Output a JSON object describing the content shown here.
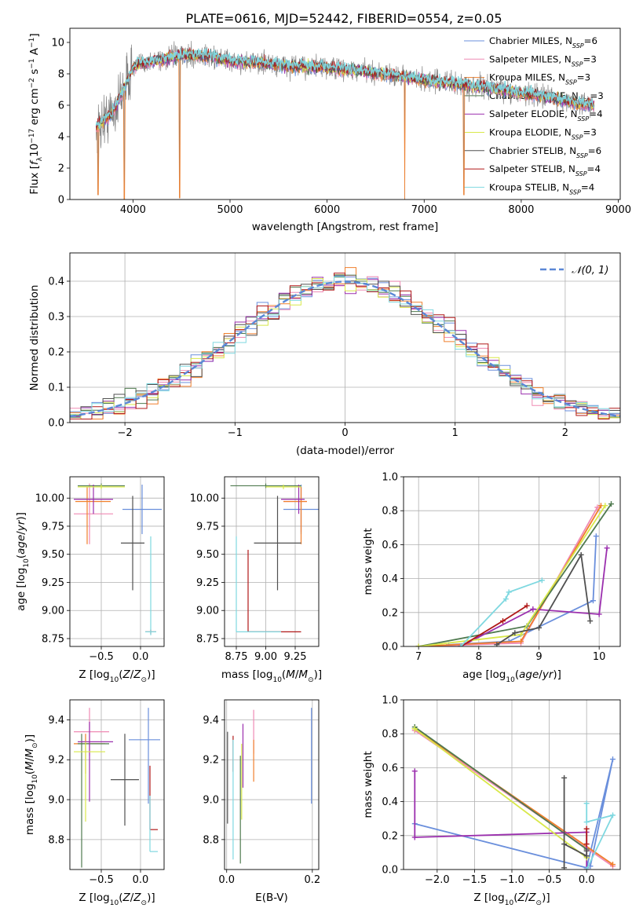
{
  "figure": {
    "title": "PLATE=0616, MJD=52442, FIBERID=0554, z=0.05"
  },
  "chart_data": [
    {
      "id": "spectrum",
      "type": "line",
      "xlabel": "wavelength [Angstrom, rest frame]",
      "ylabel": "Flux [fλ10⁻¹⁷ erg cm⁻² s⁻¹ A⁻¹]",
      "xlim": [
        3350,
        9020
      ],
      "ylim": [
        0,
        10.9
      ],
      "xticks": [
        4000,
        5000,
        6000,
        7000,
        8000,
        9000
      ],
      "yticks": [
        0,
        2,
        4,
        6,
        8,
        10
      ],
      "legend_position": "right",
      "data_range": [
        3620,
        8750
      ],
      "continuum": [
        [
          3620,
          4.6
        ],
        [
          3800,
          5.6
        ],
        [
          3900,
          7.0
        ],
        [
          4000,
          8.4
        ],
        [
          4100,
          8.7
        ],
        [
          4300,
          8.9
        ],
        [
          4500,
          9.2
        ],
        [
          4800,
          9.1
        ],
        [
          5000,
          8.8
        ],
        [
          5300,
          8.7
        ],
        [
          5600,
          8.5
        ],
        [
          6000,
          8.4
        ],
        [
          6300,
          8.2
        ],
        [
          6600,
          8.0
        ],
        [
          7000,
          7.6
        ],
        [
          7400,
          7.3
        ],
        [
          7800,
          7.0
        ],
        [
          8200,
          6.6
        ],
        [
          8500,
          6.2
        ],
        [
          8750,
          6.0
        ]
      ],
      "absorption_dips": [
        [
          3910,
          0.0
        ],
        [
          4480,
          0.1
        ],
        [
          6800,
          0.0
        ],
        [
          7410,
          0.3
        ],
        [
          3640,
          0.3
        ]
      ],
      "series": [
        {
          "name": "Chabrier MILES, N_SSP=6",
          "legend": "Chabrier MILES, N",
          "n_ssp": "6",
          "color": "#6a8fdc"
        },
        {
          "name": "Salpeter MILES, N_SSP=3",
          "legend": "Salpeter MILES, N",
          "n_ssp": "3",
          "color": "#ef8ab4"
        },
        {
          "name": "Kroupa MILES, N_SSP=3",
          "legend": "Kroupa MILES, N",
          "n_ssp": "3",
          "color": "#f07f2c"
        },
        {
          "name": "Chabrier ELODIE, N_SSP=3",
          "legend": "Chabrier ELODIE, N",
          "n_ssp": "3",
          "color": "#4f7a4f"
        },
        {
          "name": "Salpeter ELODIE, N_SSP=4",
          "legend": "Salpeter ELODIE, N",
          "n_ssp": "4",
          "color": "#9b2fae"
        },
        {
          "name": "Kroupa ELODIE, N_SSP=3",
          "legend": "Kroupa ELODIE, N",
          "n_ssp": "3",
          "color": "#d8e84a"
        },
        {
          "name": "Chabrier STELIB, N_SSP=6",
          "legend": "Chabrier STELIB, N",
          "n_ssp": "6",
          "color": "#505050"
        },
        {
          "name": "Salpeter STELIB, N_SSP=4",
          "legend": "Salpeter STELIB, N",
          "n_ssp": "4",
          "color": "#b01818"
        },
        {
          "name": "Kroupa STELIB, N_SSP=4",
          "legend": "Kroupa STELIB, N",
          "n_ssp": "4",
          "color": "#7fd8e0"
        }
      ],
      "data_color": "#808080"
    },
    {
      "id": "residuals",
      "type": "line",
      "xlabel": "(data-model)/error",
      "ylabel": "Normed distribution",
      "xlim": [
        -2.5,
        2.5
      ],
      "ylim": [
        0,
        0.48
      ],
      "xticks": [
        -2,
        -1,
        0,
        1,
        2
      ],
      "yticks": [
        0.0,
        0.1,
        0.2,
        0.3,
        0.4
      ],
      "legend": "𝒩(0, 1)",
      "legend_position": "top-right",
      "gaussian_color": "#5b87d6",
      "bin_width": 0.1
    },
    {
      "id": "age_vs_Z",
      "type": "scatter",
      "xlabel": "Z [log₁₀(Z/Z⊙)]",
      "ylabel": "age  [log₁₀(age/yr)]",
      "xlim": [
        -0.9,
        0.3
      ],
      "ylim": [
        8.68,
        10.19
      ],
      "xticks": [
        -0.5,
        0.0
      ],
      "yticks": [
        8.75,
        9.0,
        9.25,
        9.5,
        9.75,
        10.0
      ],
      "points": [
        {
          "x": 0.02,
          "y": 9.9,
          "xerr": [
            0.25,
            0.25
          ],
          "yerr": [
            0.22,
            0.22
          ],
          "color": "#6a8fdc"
        },
        {
          "x": -0.65,
          "y": 9.86,
          "xerr": [
            0.2,
            0.3
          ],
          "yerr": [
            0.27,
            0.27
          ],
          "color": "#ef8ab4"
        },
        {
          "x": -0.68,
          "y": 9.97,
          "xerr": [
            0.15,
            0.3
          ],
          "yerr": [
            0.38,
            0.13
          ],
          "color": "#f07f2c"
        },
        {
          "x": -0.5,
          "y": 10.11,
          "xerr": [
            0.3,
            0.3
          ],
          "yerr": [
            0.02,
            0.02
          ],
          "color": "#4f7a4f"
        },
        {
          "x": -0.6,
          "y": 9.99,
          "xerr": [
            0.25,
            0.25
          ],
          "yerr": [
            0.13,
            0.13
          ],
          "color": "#9b2fae"
        },
        {
          "x": -0.5,
          "y": 10.1,
          "xerr": [
            0.3,
            0.3
          ],
          "yerr": [
            0.02,
            0.02
          ],
          "color": "#d8e84a"
        },
        {
          "x": -0.1,
          "y": 9.6,
          "xerr": [
            0.15,
            0.15
          ],
          "yerr": [
            0.42,
            0.42
          ],
          "color": "#505050"
        },
        {
          "x": 0.13,
          "y": 8.81,
          "xerr": [
            0.07,
            0.07
          ],
          "yerr": [
            0.02,
            0.02
          ],
          "color": "#b01818"
        },
        {
          "x": 0.13,
          "y": 8.81,
          "xerr": [
            0.07,
            0.07
          ],
          "yerr": [
            0.03,
            0.85
          ],
          "color": "#7fd8e0"
        }
      ]
    },
    {
      "id": "age_vs_mass",
      "type": "scatter",
      "xlabel": "mass [log₁₀(M/M⊙)]",
      "ylabel": "",
      "xlim": [
        8.65,
        9.45
      ],
      "ylim": [
        8.68,
        10.19
      ],
      "xticks": [
        8.75,
        9.0,
        9.25
      ],
      "yticks": [
        8.75,
        9.0,
        9.25,
        9.5,
        9.75,
        10.0
      ],
      "points": [
        {
          "x": 9.3,
          "y": 9.9,
          "xerr": [
            0.15,
            0.15
          ],
          "yerr": [
            0.22,
            0.22
          ],
          "color": "#6a8fdc"
        },
        {
          "x": 9.3,
          "y": 9.97,
          "xerr": [
            0.15,
            0.05
          ],
          "yerr": [
            0.27,
            0.13
          ],
          "color": "#ef8ab4"
        },
        {
          "x": 9.3,
          "y": 9.97,
          "xerr": [
            0.15,
            0.05
          ],
          "yerr": [
            0.38,
            0.13
          ],
          "color": "#f07f2c"
        },
        {
          "x": 9.0,
          "y": 10.11,
          "xerr": [
            0.3,
            0.3
          ],
          "yerr": [
            0.02,
            0.02
          ],
          "color": "#4f7a4f"
        },
        {
          "x": 9.28,
          "y": 9.99,
          "xerr": [
            0.15,
            0.05
          ],
          "yerr": [
            0.13,
            0.13
          ],
          "color": "#9b2fae"
        },
        {
          "x": 9.15,
          "y": 10.1,
          "xerr": [
            0.15,
            0.15
          ],
          "yerr": [
            0.02,
            0.02
          ],
          "color": "#d8e84a"
        },
        {
          "x": 9.1,
          "y": 9.6,
          "xerr": [
            0.2,
            0.2
          ],
          "yerr": [
            0.42,
            0.42
          ],
          "color": "#505050"
        },
        {
          "x": 8.85,
          "y": 8.81,
          "xerr": [
            0.0,
            0.45
          ],
          "yerr": [
            0.0,
            0.73
          ],
          "color": "#b01818"
        },
        {
          "x": 8.75,
          "y": 8.81,
          "xerr": [
            0.0,
            0.38
          ],
          "yerr": [
            0.0,
            0.85
          ],
          "color": "#7fd8e0"
        }
      ]
    },
    {
      "id": "mass_weight_vs_age",
      "type": "line",
      "xlabel": "age  [log₁₀(age/yr)]",
      "ylabel": "mass weight",
      "xlim": [
        6.75,
        10.35
      ],
      "ylim": [
        0,
        1.0
      ],
      "xticks": [
        7,
        8,
        9,
        10
      ],
      "yticks": [
        0.0,
        0.2,
        0.4,
        0.6,
        0.8,
        1.0
      ],
      "series": [
        {
          "color": "#6a8fdc",
          "points": [
            [
              7.5,
              0.01
            ],
            [
              8.5,
              0.03
            ],
            [
              9.9,
              0.27
            ],
            [
              9.95,
              0.65
            ]
          ]
        },
        {
          "color": "#ef8ab4",
          "points": [
            [
              7.0,
              0.0
            ],
            [
              8.7,
              0.02
            ],
            [
              9.97,
              0.82
            ]
          ]
        },
        {
          "color": "#f07f2c",
          "points": [
            [
              7.0,
              0.0
            ],
            [
              8.7,
              0.03
            ],
            [
              10.03,
              0.83
            ]
          ]
        },
        {
          "color": "#4f7a4f",
          "points": [
            [
              7.0,
              0.0
            ],
            [
              8.8,
              0.12
            ],
            [
              10.2,
              0.84
            ]
          ]
        },
        {
          "color": "#9b2fae",
          "points": [
            [
              7.7,
              0.0
            ],
            [
              8.9,
              0.22
            ],
            [
              10.0,
              0.19
            ],
            [
              10.13,
              0.58
            ]
          ]
        },
        {
          "color": "#d8e84a",
          "points": [
            [
              7.0,
              0.0
            ],
            [
              8.7,
              0.07
            ],
            [
              10.1,
              0.83
            ]
          ]
        },
        {
          "color": "#505050",
          "points": [
            [
              8.3,
              0.01
            ],
            [
              8.6,
              0.08
            ],
            [
              9.0,
              0.11
            ],
            [
              9.7,
              0.54
            ],
            [
              9.85,
              0.15
            ]
          ]
        },
        {
          "color": "#b01818",
          "points": [
            [
              7.7,
              0.0
            ],
            [
              8.4,
              0.15
            ],
            [
              8.8,
              0.24
            ]
          ]
        },
        {
          "color": "#7fd8e0",
          "points": [
            [
              7.7,
              0.0
            ],
            [
              8.45,
              0.28
            ],
            [
              8.5,
              0.32
            ],
            [
              9.05,
              0.39
            ]
          ]
        }
      ]
    },
    {
      "id": "mass_vs_Z",
      "type": "scatter",
      "xlabel": "Z [log₁₀(Z/Z⊙)]",
      "ylabel": "mass [log₁₀(M/M⊙)]",
      "xlim": [
        -0.9,
        0.3
      ],
      "ylim": [
        8.65,
        9.5
      ],
      "xticks": [
        -0.5,
        0.0
      ],
      "yticks": [
        8.8,
        9.0,
        9.2,
        9.4
      ],
      "points": [
        {
          "x": 0.1,
          "y": 9.3,
          "xerr": [
            0.25,
            0.15
          ],
          "yerr": [
            0.32,
            0.16
          ],
          "color": "#6a8fdc"
        },
        {
          "x": -0.65,
          "y": 9.34,
          "xerr": [
            0.2,
            0.25
          ],
          "yerr": [
            0.12,
            0.12
          ],
          "color": "#ef8ab4"
        },
        {
          "x": -0.7,
          "y": 9.28,
          "xerr": [
            0.15,
            0.25
          ],
          "yerr": [
            0.15,
            0.05
          ],
          "color": "#f07f2c"
        },
        {
          "x": -0.75,
          "y": 9.28,
          "xerr": [
            0.05,
            0.35
          ],
          "yerr": [
            0.62,
            0.05
          ],
          "color": "#4f7a4f"
        },
        {
          "x": -0.65,
          "y": 9.29,
          "xerr": [
            0.15,
            0.3
          ],
          "yerr": [
            0.3,
            0.1
          ],
          "color": "#9b2fae"
        },
        {
          "x": -0.7,
          "y": 9.24,
          "xerr": [
            0.15,
            0.25
          ],
          "yerr": [
            0.35,
            0.05
          ],
          "color": "#d8e84a"
        },
        {
          "x": -0.2,
          "y": 9.1,
          "xerr": [
            0.18,
            0.18
          ],
          "yerr": [
            0.23,
            0.23
          ],
          "color": "#505050"
        },
        {
          "x": 0.12,
          "y": 8.85,
          "xerr": [
            0.0,
            0.1
          ],
          "yerr": [
            0.0,
            0.32
          ],
          "color": "#b01818"
        },
        {
          "x": 0.12,
          "y": 8.74,
          "xerr": [
            0.0,
            0.1
          ],
          "yerr": [
            0.0,
            0.28
          ],
          "color": "#7fd8e0"
        }
      ]
    },
    {
      "id": "mass_vs_ebv",
      "type": "scatter",
      "xlabel": "E(B-V)",
      "ylabel": "",
      "xlim": [
        -0.005,
        0.215
      ],
      "ylim": [
        8.65,
        9.5
      ],
      "xticks": [
        0.0,
        0.2
      ],
      "yticks": [
        8.8,
        9.0,
        9.2,
        9.4
      ],
      "points": [
        {
          "x": 0.198,
          "y": 9.22,
          "yerr": [
            0.24,
            0.24
          ],
          "color": "#6a8fdc"
        },
        {
          "x": 0.063,
          "y": 9.3,
          "yerr": [
            0.07,
            0.15
          ],
          "color": "#ef8ab4"
        },
        {
          "x": 0.063,
          "y": 9.2,
          "yerr": [
            0.11,
            0.1
          ],
          "color": "#f07f2c"
        },
        {
          "x": 0.032,
          "y": 8.94,
          "yerr": [
            0.26,
            0.28
          ],
          "color": "#4f7a4f"
        },
        {
          "x": 0.038,
          "y": 9.23,
          "yerr": [
            0.17,
            0.15
          ],
          "color": "#9b2fae"
        },
        {
          "x": 0.035,
          "y": 9.1,
          "yerr": [
            0.2,
            0.18
          ],
          "color": "#d8e84a"
        },
        {
          "x": 0.002,
          "y": 9.11,
          "yerr": [
            0.23,
            0.23
          ],
          "color": "#505050"
        },
        {
          "x": 0.015,
          "y": 9.22,
          "yerr": [
            0.08,
            0.1
          ],
          "color": "#b01818"
        },
        {
          "x": 0.015,
          "y": 8.98,
          "yerr": [
            0.28,
            0.32
          ],
          "color": "#7fd8e0"
        }
      ]
    },
    {
      "id": "mass_weight_vs_Z",
      "type": "line",
      "xlabel": "Z [log₁₀(Z/Z⊙)]",
      "ylabel": "mass weight",
      "xlim": [
        -2.45,
        0.45
      ],
      "ylim": [
        0,
        1.0
      ],
      "xticks": [
        -2.0,
        -1.5,
        -1.0,
        -0.5,
        0.0
      ],
      "yticks": [
        0.0,
        0.2,
        0.4,
        0.6,
        0.8,
        1.0
      ],
      "series": [
        {
          "color": "#6a8fdc",
          "points": [
            [
              -2.3,
              0.27
            ],
            [
              0.0,
              0.01
            ],
            [
              0.35,
              0.65
            ],
            [
              0.05,
              0.02
            ]
          ]
        },
        {
          "color": "#ef8ab4",
          "points": [
            [
              -2.3,
              0.82
            ],
            [
              0.35,
              0.02
            ]
          ]
        },
        {
          "color": "#f07f2c",
          "points": [
            [
              -2.3,
              0.83
            ],
            [
              0.35,
              0.03
            ]
          ]
        },
        {
          "color": "#4f7a4f",
          "points": [
            [
              -2.3,
              0.84
            ],
            [
              0.0,
              0.12
            ]
          ]
        },
        {
          "color": "#9b2fae",
          "points": [
            [
              -2.3,
              0.58
            ],
            [
              -2.3,
              0.19
            ],
            [
              0.0,
              0.22
            ],
            [
              0.0,
              0.0
            ]
          ]
        },
        {
          "color": "#d8e84a",
          "points": [
            [
              -2.3,
              0.83
            ],
            [
              0.0,
              0.07
            ]
          ]
        },
        {
          "color": "#505050",
          "points": [
            [
              -0.3,
              0.54
            ],
            [
              -0.3,
              0.01
            ],
            [
              -0.3,
              0.15
            ],
            [
              0.0,
              0.08
            ],
            [
              0.0,
              0.11
            ]
          ]
        },
        {
          "color": "#b01818",
          "points": [
            [
              0.0,
              0.15
            ],
            [
              0.0,
              0.24
            ]
          ]
        },
        {
          "color": "#7fd8e0",
          "points": [
            [
              0.0,
              0.39
            ],
            [
              0.0,
              0.28
            ],
            [
              0.35,
              0.32
            ],
            [
              0.0,
              0.0
            ]
          ]
        }
      ]
    }
  ]
}
